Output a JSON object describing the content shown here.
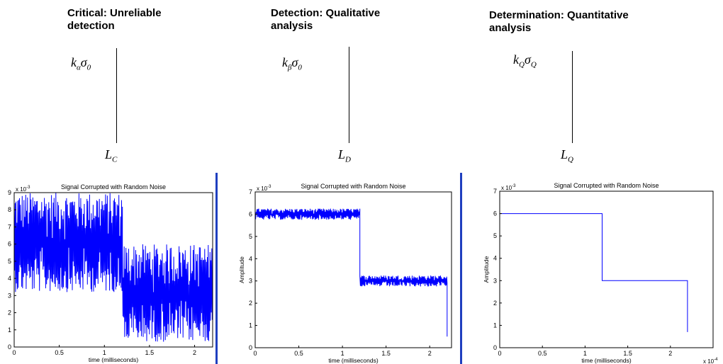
{
  "headings": [
    {
      "line1": "Critical: Unreliable",
      "line2": "detection"
    },
    {
      "line1": "Detection: Qualitative",
      "line2": "analysis"
    },
    {
      "line1": "Determination: Quantitative",
      "line2": "analysis"
    }
  ],
  "formulas": [
    {
      "k": "k",
      "k_sub": "α",
      "sigma": "σ",
      "sigma_sub": "0"
    },
    {
      "k": "k",
      "k_sub": "β",
      "sigma": "σ",
      "sigma_sub": "0"
    },
    {
      "k": "k",
      "k_sub": "Q",
      "sigma": "σ",
      "sigma_sub": "Q"
    }
  ],
  "limits": [
    {
      "L": "L",
      "sub": "C"
    },
    {
      "L": "L",
      "sub": "D"
    },
    {
      "L": "L",
      "sub": "Q"
    }
  ],
  "colors": {
    "signal": "#0000ff",
    "axis": "#000000",
    "separator": "#1f3fbf"
  },
  "chart_data": [
    {
      "type": "line",
      "title": "Signal Corrupted with Random Noise",
      "xlabel": "time (milliseconds)",
      "ylabel": "",
      "xlim": [
        0,
        2.2
      ],
      "ylim": [
        0,
        9
      ],
      "x_ticks": [
        "0",
        "0.5",
        "1",
        "1.5",
        "2"
      ],
      "x_tick_values": [
        0,
        0.5,
        1,
        1.5,
        2
      ],
      "y_ticks": [
        "0",
        "1",
        "2",
        "3",
        "4",
        "5",
        "6",
        "7",
        "8",
        "9"
      ],
      "y_tick_values": [
        0,
        1,
        2,
        3,
        4,
        5,
        6,
        7,
        8,
        9
      ],
      "y_exponent": "x 10",
      "y_exponent_power": "-3",
      "series": [
        {
          "segments": [
            {
              "x_start": 0.0,
              "x_end": 1.2,
              "mean": 6.0,
              "noise_low": 3.2,
              "noise_high": 9.0
            },
            {
              "x_start": 1.2,
              "x_end": 2.2,
              "mean": 3.0,
              "noise_low": 0.3,
              "noise_high": 6.0
            }
          ]
        }
      ]
    },
    {
      "type": "line",
      "title": "Signal Corrupted with Random Noise",
      "xlabel": "time (milliseconds)",
      "ylabel": "Amplitude",
      "xlim": [
        0,
        2.25
      ],
      "ylim": [
        0,
        7
      ],
      "x_ticks": [
        "0",
        "0.5",
        "1",
        "1.5",
        "2"
      ],
      "x_tick_values": [
        0,
        0.5,
        1,
        1.5,
        2
      ],
      "y_ticks": [
        "0",
        "1",
        "2",
        "3",
        "4",
        "5",
        "6",
        "7"
      ],
      "y_tick_values": [
        0,
        1,
        2,
        3,
        4,
        5,
        6,
        7
      ],
      "y_exponent": "x 10",
      "y_exponent_power": "-3",
      "series": [
        {
          "segments": [
            {
              "x_start": 0.0,
              "x_end": 1.2,
              "mean": 6.0,
              "noise_low": 5.75,
              "noise_high": 6.25
            },
            {
              "x_start": 1.2,
              "x_end": 2.2,
              "mean": 3.0,
              "noise_low": 2.75,
              "noise_high": 3.25
            }
          ],
          "end_value": 0.5
        }
      ]
    },
    {
      "type": "line",
      "title": "Signal Corrupted with Random Noise",
      "xlabel": "time (milliseconds)",
      "ylabel": "Amplitude",
      "xlim": [
        0,
        2.5
      ],
      "ylim": [
        0,
        7
      ],
      "x_ticks": [
        "0",
        "0.5",
        "1",
        "1.5",
        "2"
      ],
      "x_tick_values": [
        0,
        0.5,
        1,
        1.5,
        2
      ],
      "y_ticks": [
        "0",
        "1",
        "2",
        "3",
        "4",
        "5",
        "6",
        "7"
      ],
      "y_tick_values": [
        0,
        1,
        2,
        3,
        4,
        5,
        6,
        7
      ],
      "y_exponent": "x 10",
      "y_exponent_power": "-3",
      "x_exponent": "x 10",
      "x_exponent_power": "-4",
      "series": [
        {
          "segments": [
            {
              "x_start": 0.0,
              "x_end": 1.2,
              "mean": 6.0,
              "noise_low": 6.0,
              "noise_high": 6.0
            },
            {
              "x_start": 1.2,
              "x_end": 2.2,
              "mean": 3.0,
              "noise_low": 3.0,
              "noise_high": 3.0
            }
          ],
          "end_value": 0.7
        }
      ]
    }
  ]
}
